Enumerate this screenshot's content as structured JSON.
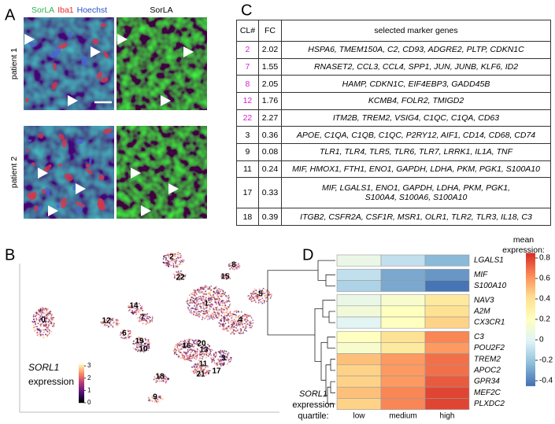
{
  "panel_labels": [
    "A",
    "B",
    "C",
    "D"
  ],
  "panel_a": {
    "channels": [
      {
        "name": "SorLA",
        "color": "#2bb34a"
      },
      {
        "name": "Iba1",
        "color": "#e8282b"
      },
      {
        "name": "Hoechst",
        "color": "#2b4fc9"
      }
    ],
    "single_channel": "SorLA",
    "rows": [
      "patient 1",
      "patient 2"
    ]
  },
  "panel_b": {
    "clusters": [
      0,
      1,
      2,
      22,
      8,
      15,
      5,
      4,
      14,
      7,
      12,
      6,
      19,
      10,
      16,
      20,
      13,
      3,
      11,
      17,
      21,
      18,
      9
    ],
    "gene": "SORL1",
    "legend_title": "expression",
    "colorbar": {
      "lim": [
        0,
        3.2
      ],
      "ticks": [
        0,
        1,
        2,
        3
      ],
      "colors": [
        "#000004",
        "#51127c",
        "#b73779",
        "#fc8961",
        "#fcfdbf"
      ]
    }
  },
  "panel_c": {
    "columns": [
      "CL#",
      "FC",
      "selected marker genes"
    ],
    "rows": [
      {
        "cluster": 2,
        "fc": 2.02,
        "highlight": true,
        "genes": [
          "HSPA6, TMEM150A, C2, CD93, ADGRE2, PLTP, CDKN1C"
        ]
      },
      {
        "cluster": 7,
        "fc": 1.55,
        "highlight": true,
        "genes": [
          "RNASET2, CCL3, CCL4, SPP1, JUN, JUNB, KLF6, ID2"
        ]
      },
      {
        "cluster": 8,
        "fc": 2.05,
        "highlight": true,
        "genes": [
          "HAMP, CDKN1C, EIF4EBP3, GADD45B"
        ]
      },
      {
        "cluster": 12,
        "fc": 1.76,
        "highlight": true,
        "genes": [
          "KCMB4, FOLR2, TMIGD2"
        ]
      },
      {
        "cluster": 22,
        "fc": 2.27,
        "highlight": true,
        "genes": [
          "ITM2B, TREM2, VSIG4, C1QC, C1QA, CD63"
        ]
      },
      {
        "cluster": 3,
        "fc": 0.36,
        "highlight": false,
        "genes": [
          "APOE, C1QA, C1QB, C1QC, P2RY12, AIF1, CD14, CD68, CD74"
        ]
      },
      {
        "cluster": 9,
        "fc": 0.08,
        "highlight": false,
        "genes": [
          "TLR1, TLR4, TLR5, TLR6, TLR7, LRRK1, IL1A, TNF"
        ]
      },
      {
        "cluster": 11,
        "fc": 0.24,
        "highlight": false,
        "genes": [
          "MIF, HMOX1, FTH1, ENO1, GAPDH, LDHA, PKM, PGK1, S100A10"
        ]
      },
      {
        "cluster": 17,
        "fc": 0.33,
        "highlight": false,
        "genes": [
          "MIF, LGALS1, ENO1, GAPDH, LDHA, PKM, PGK1,",
          "S100A4, S100A6, S100A10"
        ]
      },
      {
        "cluster": 18,
        "fc": 0.39,
        "highlight": false,
        "genes": [
          "ITGB2, CSFR2A, CSF1R, MSR1, OLR1, TLR2, TLR3, IL18, C3"
        ]
      }
    ]
  },
  "panel_d": {
    "genes": [
      "LGALS1",
      "MIF",
      "S100A10",
      "NAV3",
      "A2M",
      "CX3CR1",
      "C3",
      "POU2F2",
      "TREM2",
      "APOC2",
      "GPR34",
      "MEF2C",
      "PLXDC2"
    ],
    "columns": [
      "low",
      "medium",
      "high"
    ],
    "values": [
      [
        0.05,
        -0.1,
        -0.25
      ],
      [
        -0.1,
        -0.3,
        -0.35
      ],
      [
        -0.15,
        -0.3,
        -0.45
      ],
      [
        0.05,
        0.15,
        0.35
      ],
      [
        0.1,
        0.2,
        0.4
      ],
      [
        0.0,
        0.2,
        0.45
      ],
      [
        0.2,
        0.4,
        0.65
      ],
      [
        0.15,
        0.35,
        0.6
      ],
      [
        0.5,
        0.6,
        0.7
      ],
      [
        0.45,
        0.6,
        0.7
      ],
      [
        0.45,
        0.6,
        0.75
      ],
      [
        0.5,
        0.65,
        0.8
      ],
      [
        0.45,
        0.65,
        0.8
      ]
    ],
    "legend_title": [
      "mean",
      "expression:"
    ],
    "x_title": [
      "SORL1",
      "expression",
      "quartile:"
    ],
    "colorbar": {
      "lim": [
        -0.45,
        0.85
      ],
      "ticks": [
        0.8,
        0.6,
        0.4,
        0.2,
        0,
        -0.2,
        -0.4
      ],
      "colors": [
        "#4575b4",
        "#91bfdb",
        "#e0f3f8",
        "#ffffbf",
        "#fee090",
        "#fc8d59",
        "#d73027"
      ]
    }
  }
}
